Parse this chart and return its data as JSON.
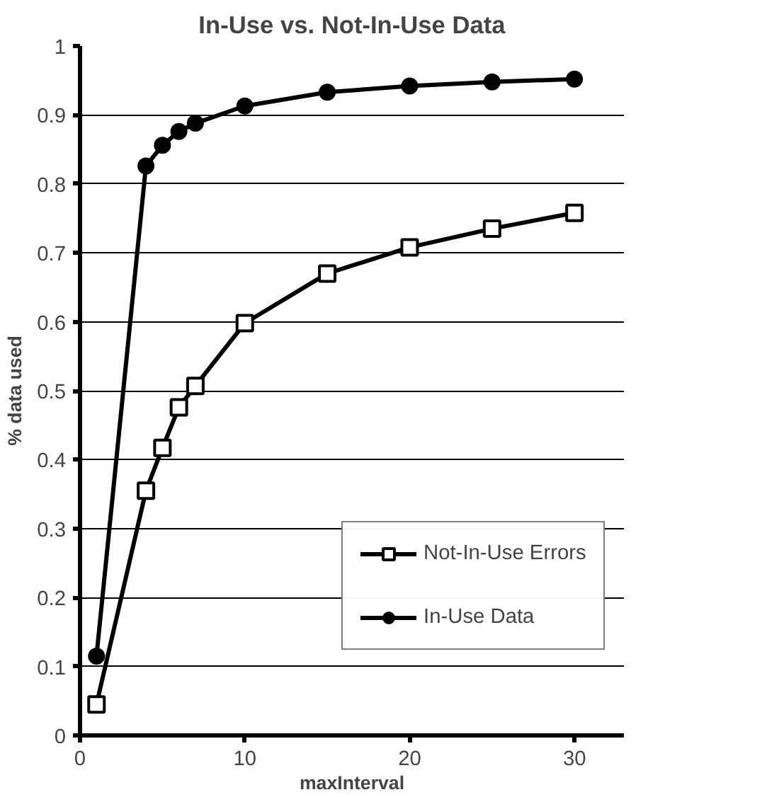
{
  "chart_data": {
    "type": "line",
    "title": "In-Use vs. Not-In-Use Data",
    "xlabel": "maxInterval",
    "ylabel": "% data used",
    "xlim": [
      0,
      33
    ],
    "xticks": [
      0,
      10,
      20,
      30
    ],
    "ylim": [
      0,
      1
    ],
    "yticks": [
      0,
      0.1,
      0.2,
      0.3,
      0.4,
      0.5,
      0.6,
      0.7,
      0.8,
      0.9,
      1
    ],
    "grid": "y",
    "legend": "right",
    "series": [
      {
        "name": "Not-In-Use Errors",
        "color": "#000000",
        "marker": "square",
        "x": [
          1,
          4,
          5,
          6,
          7,
          10,
          15,
          20,
          25,
          30
        ],
        "values": [
          0.045,
          0.355,
          0.417,
          0.476,
          0.507,
          0.598,
          0.67,
          0.708,
          0.735,
          0.758
        ]
      },
      {
        "name": "In-Use Data",
        "color": "#000000",
        "marker": "circle",
        "x": [
          1,
          4,
          5,
          6,
          7,
          10,
          15,
          20,
          25,
          30
        ],
        "values": [
          0.115,
          0.826,
          0.856,
          0.876,
          0.888,
          0.913,
          0.933,
          0.942,
          0.948,
          0.952
        ]
      }
    ]
  }
}
